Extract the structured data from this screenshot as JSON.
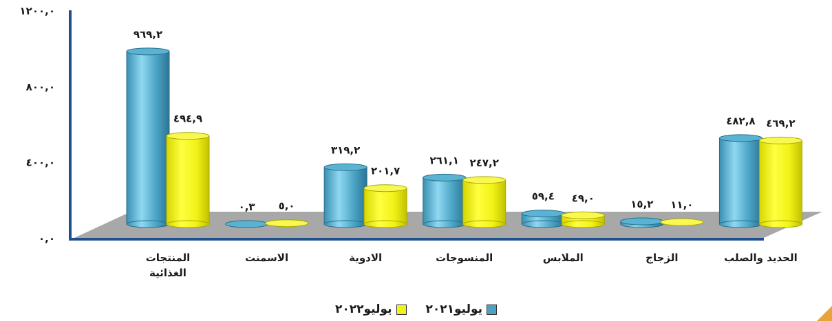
{
  "chart_data": {
    "type": "bar",
    "subtype": "3d-cylinder",
    "categories": [
      "المنتجات الغذائية",
      "الاسمنت",
      "الادوية",
      "المنسوجات",
      "الملابس",
      "الزجاج",
      "الحديد والصلب"
    ],
    "category_order": "left-to-right",
    "series": [
      {
        "name": "يوليو٢٠٢١",
        "values": [
          969.2,
          0.3,
          319.2,
          261.1,
          59.4,
          15.2,
          482.8
        ],
        "labels": [
          "٩٦٩,٢",
          "٠,٣",
          "٣١٩,٢",
          "٢٦١,١",
          "٥٩,٤",
          "١٥,٢",
          "٤٨٢,٨"
        ],
        "color": "#4aa3c4"
      },
      {
        "name": "يوليو٢٠٢٢",
        "values": [
          494.9,
          5.0,
          201.7,
          247.2,
          49.0,
          11.0,
          469.2
        ],
        "labels": [
          "٤٩٤,٩",
          "٥,٠",
          "٢٠١,٧",
          "٢٤٧,٢",
          "٤٩,٠",
          "١١,٠",
          "٤٦٩,٢"
        ],
        "color": "#f2f218"
      }
    ],
    "yticks": [
      "٠,٠",
      "٤٠٠,٠",
      "٨٠٠,٠",
      "١٢٠٠,٠"
    ],
    "ytick_values": [
      0,
      400,
      800,
      1200
    ],
    "ylim": [
      0,
      1200
    ],
    "grid": false,
    "legend_position": "bottom-center",
    "axis_color": "#1f4f8f",
    "floor_color": "#a8a8a8"
  }
}
